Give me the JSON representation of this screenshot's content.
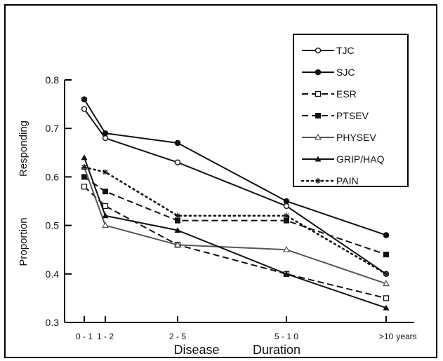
{
  "chart_data": {
    "type": "line",
    "title": "",
    "xlabel": "Disease Duration",
    "ylabel": "Proportion Responding",
    "xlabel_parts": [
      "Disease",
      "Duration"
    ],
    "ylabel_parts": [
      "Proportion",
      "Responding"
    ],
    "categories": [
      "0 - 1",
      "1 - 2",
      "2 - 5",
      "5 - 1 0",
      ">10"
    ],
    "x_unit_label": "years",
    "ylim": [
      0.3,
      0.8
    ],
    "y_ticks": [
      "0.3",
      "0.4",
      "0.5",
      "0.6",
      "0.7",
      "0.8"
    ],
    "grid": false,
    "legend_position": "top-right",
    "series": [
      {
        "name": "TJC",
        "values": [
          0.74,
          0.68,
          0.63,
          0.54,
          0.4
        ],
        "marker": "open-circle",
        "dash": "solid",
        "color": "#111111"
      },
      {
        "name": "SJC",
        "values": [
          0.76,
          0.69,
          0.67,
          0.55,
          0.48
        ],
        "marker": "filled-circle",
        "dash": "solid",
        "color": "#111111"
      },
      {
        "name": "ESR",
        "values": [
          0.58,
          0.54,
          0.46,
          0.4,
          0.35
        ],
        "marker": "open-square",
        "dash": "dashed",
        "color": "#111111"
      },
      {
        "name": "PTSEV",
        "values": [
          0.6,
          0.57,
          0.51,
          0.51,
          0.44
        ],
        "marker": "filled-square",
        "dash": "dashed",
        "color": "#111111"
      },
      {
        "name": "PHYSEV",
        "values": [
          0.62,
          0.5,
          0.46,
          0.45,
          0.38
        ],
        "marker": "open-triangle",
        "dash": "solid",
        "color": "#555555"
      },
      {
        "name": "GRIP/HAQ",
        "values": [
          0.64,
          0.52,
          0.49,
          0.4,
          0.33
        ],
        "marker": "filled-triangle",
        "dash": "solid",
        "color": "#111111"
      },
      {
        "name": "PAIN",
        "values": [
          0.62,
          0.61,
          0.52,
          0.52,
          0.4
        ],
        "marker": "star",
        "dash": "dotted",
        "color": "#111111"
      }
    ]
  }
}
